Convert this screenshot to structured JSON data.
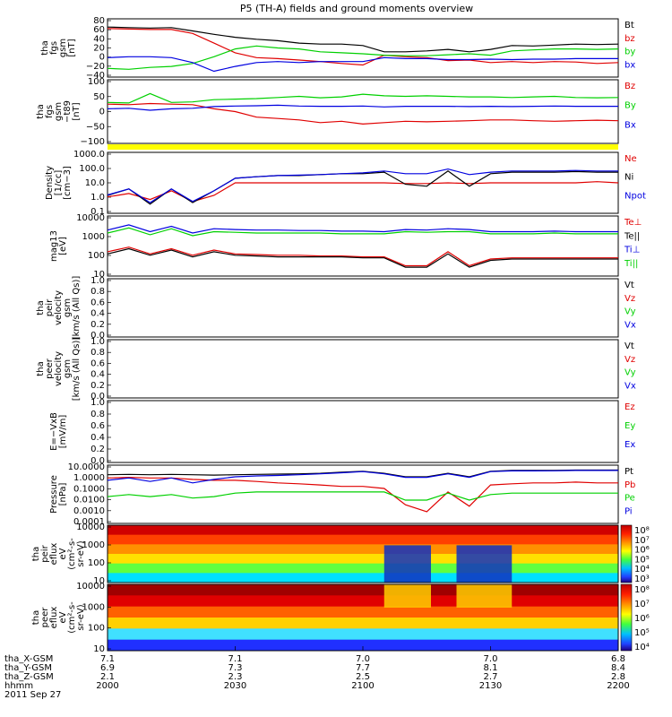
{
  "title": "P5 (TH-A) fields and ground moments overview",
  "x_axis": {
    "hhmm": [
      "2000",
      "2030",
      "2100",
      "2130",
      "2200"
    ],
    "ephemeris": [
      {
        "label": "tha_X-GSM",
        "values": [
          "7.1",
          "7.1",
          "7.0",
          "7.0",
          "6.8"
        ]
      },
      {
        "label": "tha_Y-GSM",
        "values": [
          "6.9",
          "7.3",
          "7.7",
          "8.1",
          "8.4"
        ]
      },
      {
        "label": "tha_Z-GSM",
        "values": [
          "2.1",
          "2.3",
          "2.5",
          "2.7",
          "2.8"
        ]
      },
      {
        "label": "hhmm",
        "values": [
          "2000",
          "2030",
          "2100",
          "2130",
          "2200"
        ]
      }
    ],
    "date": "2011 Sep 27"
  },
  "colors": {
    "black": "#000000",
    "red": "#e00000",
    "green": "#00d000",
    "blue": "#0000e0",
    "yellow": "#ffff00"
  },
  "panels": [
    {
      "id": "fgs",
      "ylabel": [
        "tha",
        "fgs",
        "gsm",
        "[nT]"
      ],
      "ticks": [
        "80",
        "60",
        "40",
        "20",
        "0",
        "−20",
        "−40"
      ],
      "ylim": [
        -40,
        80
      ],
      "legend": [
        {
          "label": "Bt",
          "color": "black"
        },
        {
          "label": "bz",
          "color": "red"
        },
        {
          "label": "by",
          "color": "green"
        },
        {
          "label": "bx",
          "color": "blue"
        }
      ]
    },
    {
      "id": "fgs_t89",
      "ylabel": [
        "tha",
        "fgs",
        "gsm",
        "−t89",
        "[nT]"
      ],
      "ticks": [
        "100",
        "50",
        "0",
        "−50",
        "−100"
      ],
      "ylim": [
        -130,
        100
      ],
      "legend": [
        {
          "label": "Bz",
          "color": "red"
        },
        {
          "label": "By",
          "color": "green"
        },
        {
          "label": "Bx",
          "color": "blue"
        }
      ]
    },
    {
      "id": "density",
      "ylabel": [
        "Density",
        "[1/cc]",
        "[cm−3]"
      ],
      "ticks": [
        "1000.0",
        "100.0",
        "10.0",
        "1.0",
        "0.1"
      ],
      "ylim": [
        0.1,
        1000
      ],
      "log": true,
      "legend": [
        {
          "label": "Ne",
          "color": "red"
        },
        {
          "label": "Ni",
          "color": "black"
        },
        {
          "label": "Npot",
          "color": "blue"
        }
      ]
    },
    {
      "id": "temp",
      "ylabel": [
        "mag13",
        "[eV]"
      ],
      "ticks": [
        "10000",
        "1000",
        "100",
        "10"
      ],
      "ylim": [
        3,
        10000
      ],
      "log": true,
      "legend": [
        {
          "label": "Te⊥",
          "color": "red"
        },
        {
          "label": "Te||",
          "color": "black"
        },
        {
          "label": "Ti⊥",
          "color": "blue"
        },
        {
          "label": "Ti||",
          "color": "green"
        }
      ]
    },
    {
      "id": "peir_vel",
      "ylabel": [
        "tha",
        "peir",
        "velocity",
        "gsm",
        "[km/s (All Qs)]"
      ],
      "ticks": [
        "1.0",
        "0.8",
        "0.6",
        "0.4",
        "0.2",
        "0.0"
      ],
      "ylim": [
        0,
        1
      ],
      "legend": [
        {
          "label": "Vt",
          "color": "black"
        },
        {
          "label": "Vz",
          "color": "red"
        },
        {
          "label": "Vy",
          "color": "green"
        },
        {
          "label": "Vx",
          "color": "blue"
        }
      ]
    },
    {
      "id": "peer_vel",
      "ylabel": [
        "tha",
        "peer",
        "velocity",
        "gsm",
        "[km/s (All Qs)]"
      ],
      "ticks": [
        "1.0",
        "0.8",
        "0.6",
        "0.4",
        "0.2",
        "0.0"
      ],
      "ylim": [
        0,
        1
      ],
      "legend": [
        {
          "label": "Vt",
          "color": "black"
        },
        {
          "label": "Vz",
          "color": "red"
        },
        {
          "label": "Vy",
          "color": "green"
        },
        {
          "label": "Vx",
          "color": "blue"
        }
      ]
    },
    {
      "id": "efield",
      "ylabel": [
        "E=−VxB",
        "[mV/m]"
      ],
      "ticks": [
        "1.0",
        "0.8",
        "0.6",
        "0.4",
        "0.2",
        "0.0"
      ],
      "ylim": [
        0,
        1
      ],
      "legend": [
        {
          "label": "Ez",
          "color": "red"
        },
        {
          "label": "Ey",
          "color": "green"
        },
        {
          "label": "Ex",
          "color": "blue"
        }
      ]
    },
    {
      "id": "pressure",
      "ylabel": [
        "Pressure",
        "[nPa]"
      ],
      "ticks": [
        "10.0000",
        "1.0000",
        "0.1000",
        "0.0100",
        "0.0010",
        "0.0001"
      ],
      "ylim": [
        0.0001,
        10
      ],
      "log": true,
      "legend": [
        {
          "label": "Pt",
          "color": "black"
        },
        {
          "label": "Pb",
          "color": "red"
        },
        {
          "label": "Pe",
          "color": "green"
        },
        {
          "label": "Pi",
          "color": "blue"
        }
      ]
    },
    {
      "id": "peir_eflux",
      "ylabel": [
        "tha",
        "peir",
        "eflux",
        "eV",
        "(cm²-s-",
        "sr-eV)"
      ],
      "ticks": [
        "10000",
        "1000",
        "100",
        "10"
      ],
      "ylim": [
        5,
        30000
      ],
      "log": true,
      "colorbar": [
        "10⁸",
        "10⁷",
        "10⁶",
        "10⁵",
        "10⁴",
        "10³"
      ]
    },
    {
      "id": "peer_eflux",
      "ylabel": [
        "tha",
        "peer",
        "eflux",
        "eV",
        "(cm²-s-",
        "sr-eV)"
      ],
      "ticks": [
        "10000",
        "1000",
        "100",
        "10"
      ],
      "ylim": [
        5,
        30000
      ],
      "log": true,
      "colorbar": [
        "10⁸",
        "10⁷",
        "10⁶",
        "10⁵",
        "10⁴"
      ]
    }
  ],
  "chart_data": {
    "type": "line",
    "title": "P5 (TH-A) fields and ground moments overview",
    "x": [
      0,
      5,
      10,
      15,
      20,
      25,
      30,
      35,
      40,
      45,
      50,
      55,
      60,
      65,
      70,
      75,
      80,
      85,
      90,
      95,
      100,
      105,
      110,
      115,
      120
    ],
    "x_units": "minutes after 2000 UT, 2011 Sep 27",
    "x_tick_labels": [
      "2000",
      "2030",
      "2100",
      "2130",
      "2200"
    ],
    "panels": [
      {
        "id": "fgs",
        "series": [
          {
            "name": "Bt",
            "color": "black",
            "values": [
              63,
              62,
              61,
              62,
              55,
              48,
              42,
              38,
              35,
              30,
              28,
              28,
              25,
              12,
              12,
              14,
              17,
              12,
              17,
              25,
              24,
              26,
              28,
              27,
              28
            ]
          },
          {
            "name": "bz",
            "color": "red",
            "values": [
              60,
              59,
              58,
              58,
              50,
              30,
              10,
              0,
              -2,
              -5,
              -8,
              -12,
              -15,
              5,
              2,
              0,
              -6,
              -5,
              -10,
              -8,
              -10,
              -8,
              -9,
              -12,
              -10
            ]
          },
          {
            "name": "by",
            "color": "green",
            "values": [
              -22,
              -24,
              -20,
              -18,
              -12,
              2,
              18,
              24,
              20,
              18,
              12,
              10,
              8,
              5,
              4,
              4,
              6,
              8,
              5,
              14,
              16,
              18,
              18,
              17,
              18
            ]
          },
          {
            "name": "bx",
            "color": "blue",
            "values": [
              0,
              2,
              2,
              0,
              -10,
              -28,
              -18,
              -10,
              -8,
              -10,
              -8,
              -8,
              -8,
              0,
              -2,
              -2,
              -4,
              -4,
              -3,
              -4,
              -3,
              -3,
              -2,
              -2,
              -2
            ]
          }
        ]
      },
      {
        "id": "fgs_t89",
        "series": [
          {
            "name": "Bz",
            "color": "red",
            "values": [
              12,
              10,
              14,
              12,
              10,
              -5,
              -15,
              -35,
              -40,
              -45,
              -55,
              -50,
              -60,
              -55,
              -50,
              -52,
              -50,
              -48,
              -45,
              -45,
              -48,
              -50,
              -48,
              -46,
              -48
            ]
          },
          {
            "name": "By",
            "color": "green",
            "values": [
              18,
              16,
              50,
              18,
              20,
              28,
              30,
              32,
              36,
              40,
              35,
              38,
              48,
              42,
              40,
              42,
              40,
              38,
              38,
              36,
              38,
              40,
              36,
              35,
              36
            ]
          },
          {
            "name": "Bx",
            "color": "blue",
            "values": [
              -5,
              -3,
              -10,
              -5,
              -3,
              3,
              5,
              6,
              8,
              5,
              4,
              4,
              5,
              2,
              4,
              4,
              4,
              3,
              4,
              3,
              4,
              5,
              4,
              4,
              4
            ]
          }
        ]
      },
      {
        "id": "density",
        "series": [
          {
            "name": "Ne",
            "color": "red",
            "values": [
              1.2,
              2,
              0.8,
              3,
              0.6,
              1.5,
              10,
              10,
              10,
              10,
              10,
              10,
              10,
              10,
              9,
              9,
              10,
              9,
              10,
              10,
              10,
              10,
              10,
              12,
              10
            ]
          },
          {
            "name": "Ni",
            "color": "black",
            "values": [
              1.5,
              4,
              0.4,
              4,
              0.5,
              3,
              20,
              25,
              30,
              30,
              35,
              40,
              40,
              50,
              8,
              6,
              60,
              6,
              40,
              50,
              50,
              50,
              55,
              50,
              50
            ]
          },
          {
            "name": "Npot",
            "color": "blue",
            "values": [
              1.6,
              4,
              0.5,
              4,
              0.6,
              3,
              20,
              25,
              30,
              32,
              35,
              40,
              45,
              60,
              40,
              40,
              80,
              35,
              50,
              60,
              60,
              60,
              65,
              60,
              60
            ]
          }
        ]
      },
      {
        "id": "temp",
        "series": [
          {
            "name": "Te⊥",
            "color": "red",
            "values": [
              80,
              150,
              60,
              120,
              50,
              100,
              60,
              55,
              50,
              50,
              45,
              45,
              40,
              40,
              12,
              12,
              80,
              12,
              30,
              35,
              35,
              35,
              35,
              35,
              35
            ]
          },
          {
            "name": "Te||",
            "color": "black",
            "values": [
              60,
              120,
              50,
              100,
              40,
              80,
              50,
              45,
              40,
              40,
              40,
              40,
              35,
              35,
              10,
              10,
              60,
              10,
              25,
              30,
              30,
              30,
              30,
              30,
              30
            ]
          },
          {
            "name": "Ti⊥",
            "color": "blue",
            "values": [
              1500,
              3000,
              1200,
              2500,
              1000,
              1800,
              1600,
              1500,
              1500,
              1400,
              1400,
              1300,
              1300,
              1200,
              1600,
              1500,
              1800,
              1600,
              1200,
              1200,
              1200,
              1300,
              1200,
              1200,
              1200
            ]
          },
          {
            "name": "Ti||",
            "color": "green",
            "values": [
              1000,
              2000,
              800,
              1800,
              700,
              1200,
              1100,
              1000,
              1000,
              1000,
              1000,
              900,
              900,
              900,
              1200,
              1100,
              1200,
              1200,
              900,
              900,
              900,
              1000,
              900,
              900,
              900
            ]
          }
        ]
      },
      {
        "id": "pressure",
        "series": [
          {
            "name": "Pt",
            "color": "black",
            "values": [
              1.5,
              1.6,
              1.5,
              1.6,
              1.5,
              1.4,
              1.5,
              1.6,
              1.7,
              1.8,
              2,
              2.5,
              3,
              2,
              1,
              1,
              2,
              1,
              3,
              3.5,
              3.5,
              3.6,
              3.8,
              3.8,
              3.8
            ]
          },
          {
            "name": "Pb",
            "color": "red",
            "values": [
              0.8,
              0.9,
              0.8,
              0.8,
              0.6,
              0.5,
              0.5,
              0.4,
              0.3,
              0.25,
              0.2,
              0.15,
              0.15,
              0.1,
              0.004,
              0.001,
              0.05,
              0.003,
              0.2,
              0.25,
              0.3,
              0.3,
              0.35,
              0.3,
              0.3
            ]
          },
          {
            "name": "Pe",
            "color": "green",
            "values": [
              0.02,
              0.03,
              0.02,
              0.03,
              0.015,
              0.02,
              0.04,
              0.05,
              0.05,
              0.05,
              0.05,
              0.05,
              0.05,
              0.05,
              0.01,
              0.01,
              0.04,
              0.01,
              0.03,
              0.04,
              0.04,
              0.04,
              0.04,
              0.04,
              0.04
            ]
          },
          {
            "name": "Pi",
            "color": "blue",
            "values": [
              0.5,
              0.8,
              0.4,
              0.8,
              0.3,
              0.6,
              1,
              1.2,
              1.3,
              1.5,
              1.8,
              2.2,
              2.8,
              1.8,
              0.9,
              0.9,
              1.8,
              0.9,
              2.8,
              3.2,
              3.2,
              3.3,
              3.5,
              3.5,
              3.5
            ]
          }
        ]
      }
    ]
  }
}
